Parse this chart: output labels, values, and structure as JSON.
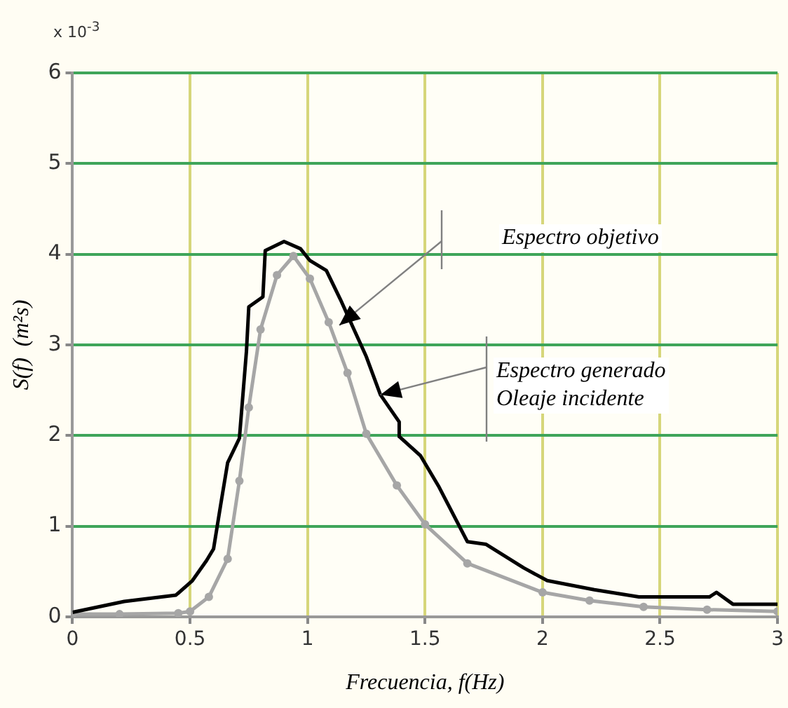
{
  "chart_data": {
    "type": "line",
    "xlabel": "Frecuencia, f(Hz)",
    "ylabel": "S(f)  (m²s)",
    "annotations": [
      "x 10$^{-3}$",
      "Espectro objetivo",
      {
        "text": "Espectro generado\nOleaje incidente",
        "x": 1.31,
        "y": 2.45
      }
    ],
    "xlim": [
      0,
      3
    ],
    "xticks": [
      0,
      0.5,
      1,
      1.5,
      2,
      2.5,
      3
    ],
    "ylim": [
      0,
      6
    ],
    "yticks": [
      0,
      1,
      2,
      3,
      4,
      5,
      6
    ],
    "grid": true,
    "legend": false,
    "series": [
      {
        "color": "#000000",
        "marker": "none",
        "x": [
          0,
          0.22,
          0.44,
          0.51,
          0.57,
          0.6,
          0.63,
          0.66,
          0.71,
          0.74,
          0.75,
          0.81,
          0.82,
          0.9,
          0.97,
          1.01,
          1.08,
          1.14,
          1.25,
          1.31,
          1.39,
          1.39,
          1.48,
          1.56,
          1.68,
          1.76,
          1.92,
          2.02,
          2.22,
          2.41,
          2.71,
          2.74,
          2.81,
          3
        ],
        "values": [
          0.05,
          0.17,
          0.24,
          0.4,
          0.62,
          0.75,
          1.23,
          1.7,
          1.97,
          2.93,
          3.42,
          3.53,
          4.04,
          4.14,
          4.06,
          3.93,
          3.82,
          3.5,
          2.87,
          2.45,
          2.15,
          1.99,
          1.78,
          1.43,
          0.83,
          0.8,
          0.54,
          0.4,
          0.3,
          0.22,
          0.22,
          0.27,
          0.14,
          0.14
        ]
      },
      {
        "color": "#a6a6a6",
        "marker": "circle",
        "x": [
          0,
          0.2,
          0.45,
          0.5,
          0.58,
          0.66,
          0.71,
          0.75,
          0.8,
          0.87,
          0.94,
          1.01,
          1.09,
          1.17,
          1.25,
          1.38,
          1.5,
          1.68,
          2,
          2.2,
          2.43,
          2.7,
          3
        ],
        "values": [
          0.03,
          0.03,
          0.04,
          0.06,
          0.22,
          0.64,
          1.5,
          2.31,
          3.17,
          3.77,
          3.98,
          3.73,
          3.25,
          2.69,
          2.02,
          1.45,
          1.02,
          0.59,
          0.27,
          0.18,
          0.11,
          0.08,
          0.06
        ]
      }
    ]
  }
}
